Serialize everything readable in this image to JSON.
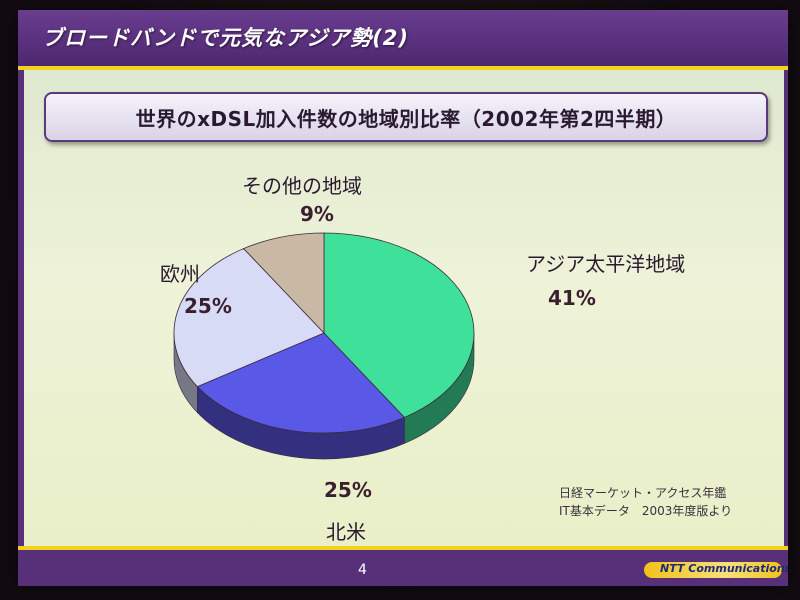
{
  "slide": {
    "heading": "ブロードバンドで元気なアジア勢(2)",
    "page_number": "4",
    "brand": "NTT Communications",
    "source_line1": "日経マーケット・アクセス年鑑",
    "source_line2": "IT基本データ　2003年度版より"
  },
  "chart_data": {
    "type": "pie",
    "title": "世界のxDSL加入件数の地域別比率（2002年第2四半期）",
    "slices": [
      {
        "label": "アジア太平洋地域",
        "value": 41,
        "pct_label": "41%",
        "color": "#3fe09a"
      },
      {
        "label": "北米",
        "value": 25,
        "pct_label": "25%",
        "color": "#5a58e6"
      },
      {
        "label": "欧州",
        "value": 25,
        "pct_label": "25%",
        "color": "#d8dbf5"
      },
      {
        "label": "その他の地域",
        "value": 9,
        "pct_label": "9%",
        "color": "#c9b8a4"
      }
    ],
    "style": "3d"
  },
  "colors": {
    "slide_purple": "#58307a",
    "accent_yellow": "#f2d21a",
    "content_bg": "#e7eecb"
  }
}
